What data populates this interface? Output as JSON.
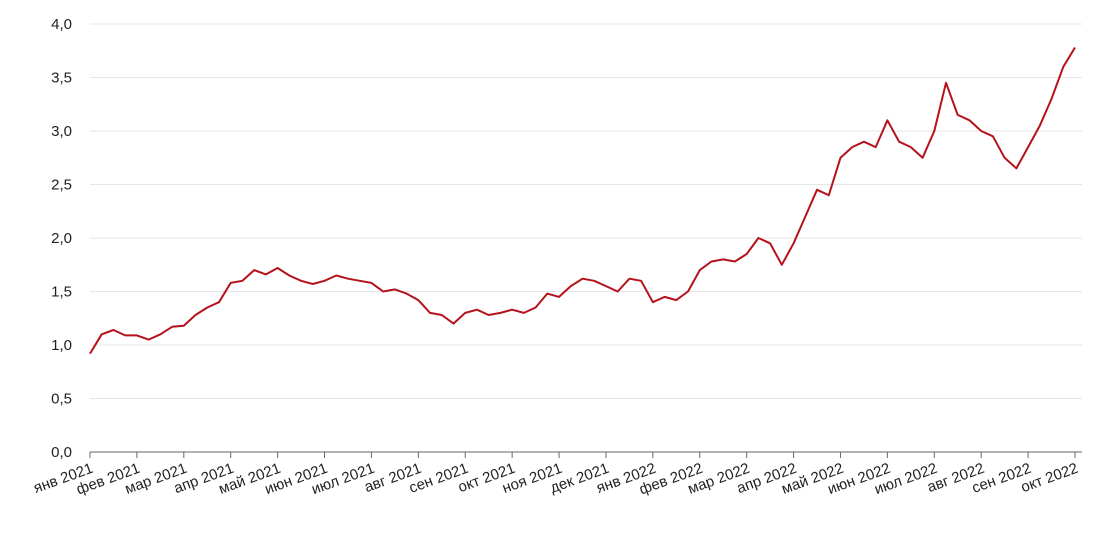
{
  "chart_data": {
    "type": "line",
    "categories": [
      "янв 2021",
      null,
      null,
      null,
      "фев 2021",
      null,
      null,
      null,
      "мар 2021",
      null,
      null,
      null,
      "апр 2021",
      null,
      null,
      null,
      "май 2021",
      null,
      null,
      null,
      "июн 2021",
      null,
      null,
      null,
      "июл 2021",
      null,
      null,
      null,
      "авг 2021",
      null,
      null,
      null,
      "сен 2021",
      null,
      null,
      null,
      "окт 2021",
      null,
      null,
      null,
      "ноя 2021",
      null,
      null,
      null,
      "дек 2021",
      null,
      null,
      null,
      "янв 2022",
      null,
      null,
      null,
      "фев 2022",
      null,
      null,
      null,
      "мар 2022",
      null,
      null,
      null,
      "апр 2022",
      null,
      null,
      null,
      "май 2022",
      null,
      null,
      null,
      "июн 2022",
      null,
      null,
      null,
      "июл 2022",
      null,
      null,
      null,
      "авг 2022",
      null,
      null,
      null,
      "сен 2022",
      null,
      null,
      null,
      "окт 2022"
    ],
    "series": [
      {
        "color": "#b5121b",
        "values": [
          0.92,
          1.1,
          1.14,
          1.09,
          1.09,
          1.05,
          1.1,
          1.17,
          1.18,
          1.28,
          1.35,
          1.4,
          1.58,
          1.6,
          1.7,
          1.66,
          1.72,
          1.65,
          1.6,
          1.57,
          1.6,
          1.65,
          1.62,
          1.6,
          1.58,
          1.5,
          1.52,
          1.48,
          1.42,
          1.3,
          1.28,
          1.2,
          1.3,
          1.33,
          1.28,
          1.3,
          1.33,
          1.3,
          1.35,
          1.48,
          1.45,
          1.55,
          1.62,
          1.6,
          1.55,
          1.5,
          1.62,
          1.6,
          1.4,
          1.45,
          1.42,
          1.5,
          1.7,
          1.78,
          1.8,
          1.78,
          1.85,
          2.0,
          1.95,
          1.75,
          1.95,
          2.2,
          2.45,
          2.4,
          2.75,
          2.85,
          2.9,
          2.85,
          3.1,
          2.9,
          2.85,
          2.75,
          3.0,
          3.45,
          3.15,
          3.1,
          3.0,
          2.95,
          2.75,
          2.65,
          2.85,
          3.05,
          3.3,
          3.6,
          3.78
        ]
      }
    ],
    "ylim": [
      0,
      4
    ],
    "yticks": [
      {
        "value": 0,
        "label": "0,0"
      },
      {
        "value": 0.5,
        "label": "0,5"
      },
      {
        "value": 1,
        "label": "1,0"
      },
      {
        "value": 1.5,
        "label": "1,5"
      },
      {
        "value": 2,
        "label": "2,0"
      },
      {
        "value": 2.5,
        "label": "2,5"
      },
      {
        "value": 3,
        "label": "3,0"
      },
      {
        "value": 3.5,
        "label": "3,5"
      },
      {
        "value": 4,
        "label": "4,0"
      }
    ],
    "grid": true
  }
}
